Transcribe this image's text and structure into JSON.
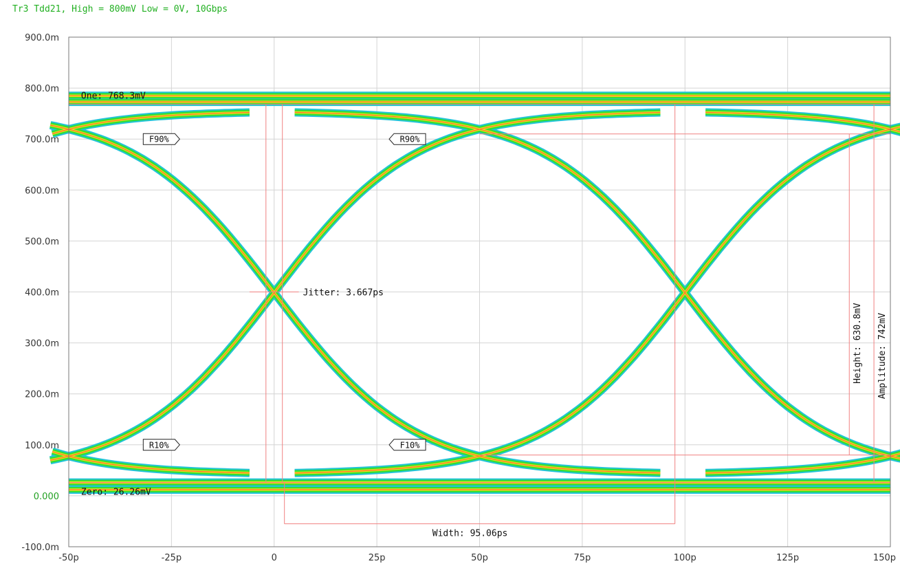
{
  "title": "Tr3 Tdd21, High = 800mV Low = 0V, 10Gbps",
  "colors": {
    "title": "#22b022",
    "grid": "#d4d4d4",
    "marker": "#f08080",
    "eye_outer": "#22c4d8",
    "eye_mid": "#33dd33",
    "eye_inner": "#e6e619",
    "eye_hot": "#ff7030"
  },
  "chart_data": {
    "type": "line",
    "subtype": "eye-diagram",
    "x_ticks": [
      "-50p",
      "-25p",
      "0",
      "25p",
      "50p",
      "75p",
      "100p",
      "125p",
      "150p"
    ],
    "x_tick_values_ps": [
      -50,
      -25,
      0,
      25,
      50,
      75,
      100,
      125,
      150
    ],
    "y_ticks": [
      "900.0m",
      "800.0m",
      "700.0m",
      "600.0m",
      "500.0m",
      "400.0m",
      "300.0m",
      "200.0m",
      "100.0m",
      "0.000",
      "-100.0m"
    ],
    "y_tick_values_mv": [
      900,
      800,
      700,
      600,
      500,
      400,
      300,
      200,
      100,
      0,
      -100
    ],
    "xlim_ps": [
      -50,
      150
    ],
    "ylim_mv": [
      -100,
      900
    ],
    "grid": true,
    "eye": {
      "high_rail_mv": 785,
      "low_rail_mv": 12,
      "crossing_mv": 400,
      "crossing_times_ps": [
        0,
        100
      ],
      "bit_period_ps": 100
    },
    "measurements": {
      "one": "One: 768.3mV",
      "zero": "Zero: 26.26mV",
      "jitter": "Jitter: 3.667ps",
      "width": "Width: 95.06ps",
      "height": "Height: 630.8mV",
      "amplitude": "Amplitude: 742mV"
    },
    "measurement_values": {
      "one_mv": 768.3,
      "zero_mv": 26.26,
      "jitter_ps": 3.667,
      "width_ps": 95.06,
      "height_mv": 630.8,
      "amplitude_mv": 742
    },
    "threshold_tags": [
      {
        "label": "F90%",
        "x_ps": -23,
        "y_mv": 700,
        "dir": "left"
      },
      {
        "label": "R90%",
        "x_ps": 28,
        "y_mv": 700,
        "dir": "right"
      },
      {
        "label": "R10%",
        "x_ps": -23,
        "y_mv": 100,
        "dir": "left"
      },
      {
        "label": "F10%",
        "x_ps": 28,
        "y_mv": 100,
        "dir": "right"
      }
    ]
  }
}
